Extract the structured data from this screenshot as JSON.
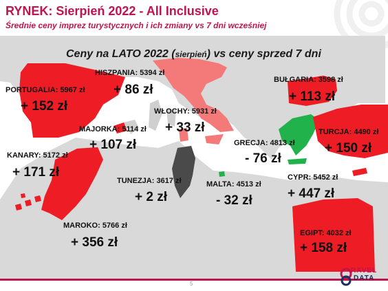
{
  "header": {
    "title": "RYNEK: Sierpień 2022 - All Inclusive",
    "subtitle": "Średnie ceny imprez turystycznych i ich zmiany vs 7 dni wcześniej"
  },
  "map": {
    "headline_main": "Ceny na LATO 2022 (",
    "headline_paren": "sierpień",
    "headline_end": ") vs ceny sprzed 7 dni",
    "colors": {
      "increase": "#ee1c24",
      "small_increase": "#f47a7a",
      "decrease": "#22b24c",
      "small_decrease": "#4a4a4a",
      "land": "#d9d9d9",
      "sea": "#ffffff"
    },
    "destinations": [
      {
        "id": "portugalia",
        "label": "PORTUGALIA: 5967 zł",
        "change": "+ 152 zł",
        "trend": "increase"
      },
      {
        "id": "hiszpania",
        "label": "HISZPANIA: 5394 zł",
        "change": "+ 86 zł",
        "trend": "increase"
      },
      {
        "id": "wlochy",
        "label": "WŁOCHY: 5931 zł",
        "change": "+ 33 zł",
        "trend": "small_increase"
      },
      {
        "id": "majorka",
        "label": "MAJORKA: 5114 zł",
        "change": "+ 107 zł",
        "trend": "increase"
      },
      {
        "id": "bulgaria",
        "label": "BUŁGARIA: 3598 zł",
        "change": "+ 113 zł",
        "trend": "increase"
      },
      {
        "id": "turcja",
        "label": "TURCJA: 4490 zł",
        "change": "+ 150 zł",
        "trend": "increase"
      },
      {
        "id": "grecja",
        "label": "GRECJA: 4813 zł",
        "change": "- 76 zł",
        "trend": "decrease"
      },
      {
        "id": "kanary",
        "label": "KANARY: 5172 zł",
        "change": "+ 171 zł",
        "trend": "increase"
      },
      {
        "id": "tunezja",
        "label": "TUNEZJA: 3617 zł",
        "change": "+ 2 zł",
        "trend": "small_decrease"
      },
      {
        "id": "malta",
        "label": "MALTA: 4513 zł",
        "change": "- 32 zł",
        "trend": "decrease"
      },
      {
        "id": "cypr",
        "label": "CYPR: 5452 zł",
        "change": "+ 447 zł",
        "trend": "increase"
      },
      {
        "id": "maroko",
        "label": "MAROKO: 5766 zł",
        "change": "+ 356 zł",
        "trend": "increase"
      },
      {
        "id": "egipt",
        "label": "EGIPT: 4032 zł",
        "change": "+ 158 zł",
        "trend": "increase"
      }
    ]
  },
  "footer": {
    "page_number": "5",
    "logo_top": "RAVEL",
    "logo_bottom": "DATA"
  }
}
